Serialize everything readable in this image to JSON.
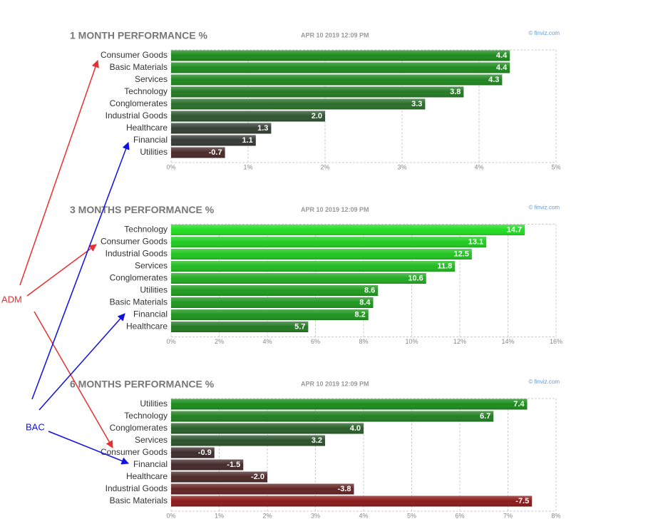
{
  "chart_data": [
    {
      "type": "bar",
      "orientation": "horizontal",
      "title": "1 MONTH PERFORMANCE %",
      "subtitle": "APR 10 2019 12:09 PM",
      "source": "© finviz.com",
      "categories": [
        "Consumer Goods",
        "Basic Materials",
        "Services",
        "Technology",
        "Conglomerates",
        "Industrial Goods",
        "Healthcare",
        "Financial",
        "Utilities"
      ],
      "values": [
        4.4,
        4.4,
        4.3,
        3.8,
        3.3,
        2.0,
        1.3,
        1.1,
        -0.7
      ],
      "value_labels": [
        "4.4",
        "4.4",
        "4.3",
        "3.8",
        "3.3",
        "2.0",
        "1.3",
        "1.1",
        "-0.7"
      ],
      "colors": [
        "#1e8a1e",
        "#1e8a1e",
        "#208620",
        "#247a24",
        "#2a6e2a",
        "#2f5530",
        "#344034",
        "#343a34",
        "#4a2a2a"
      ],
      "xlim": [
        0,
        5
      ],
      "xticks": [
        {
          "value": 0,
          "label": "0%"
        },
        {
          "value": 1,
          "label": "1%"
        },
        {
          "value": 2,
          "label": "2%"
        },
        {
          "value": 3,
          "label": "3%"
        },
        {
          "value": 4,
          "label": "4%"
        },
        {
          "value": 5,
          "label": "5%"
        }
      ],
      "grid": true
    },
    {
      "type": "bar",
      "orientation": "horizontal",
      "title": "3 MONTHS PERFORMANCE %",
      "subtitle": "APR 10 2019 12:09 PM",
      "source": "© finviz.com",
      "categories": [
        "Technology",
        "Consumer Goods",
        "Industrial Goods",
        "Services",
        "Conglomerates",
        "Utilities",
        "Basic Materials",
        "Financial",
        "Healthcare"
      ],
      "values": [
        14.7,
        13.1,
        12.5,
        11.8,
        10.6,
        8.6,
        8.4,
        8.2,
        5.7
      ],
      "value_labels": [
        "14.7",
        "13.1",
        "12.5",
        "11.8",
        "10.6",
        "8.6",
        "8.4",
        "8.2",
        "5.7"
      ],
      "colors": [
        "#22dd22",
        "#20cc20",
        "#20c420",
        "#20bb20",
        "#22aa22",
        "#1f9a1f",
        "#1f971f",
        "#1f951f",
        "#237a23"
      ],
      "xlim": [
        0,
        16
      ],
      "xticks": [
        {
          "value": 0,
          "label": "0%"
        },
        {
          "value": 2,
          "label": "2%"
        },
        {
          "value": 4,
          "label": "4%"
        },
        {
          "value": 6,
          "label": "6%"
        },
        {
          "value": 8,
          "label": "8%"
        },
        {
          "value": 10,
          "label": "10%"
        },
        {
          "value": 12,
          "label": "12%"
        },
        {
          "value": 14,
          "label": "14%"
        },
        {
          "value": 16,
          "label": "16%"
        }
      ],
      "grid": true
    },
    {
      "type": "bar",
      "orientation": "horizontal",
      "title": "6 MONTHS PERFORMANCE %",
      "subtitle": "APR 10 2019 12:09 PM",
      "source": "© finviz.com",
      "categories": [
        "Utilities",
        "Technology",
        "Conglomerates",
        "Services",
        "Consumer Goods",
        "Financial",
        "Healthcare",
        "Industrial Goods",
        "Basic Materials"
      ],
      "values": [
        7.4,
        6.7,
        4.0,
        3.2,
        -0.9,
        -1.5,
        -2.0,
        -3.8,
        -7.5
      ],
      "value_labels": [
        "7.4",
        "6.7",
        "4.0",
        "3.2",
        "-0.9",
        "-1.5",
        "-2.0",
        "-3.8",
        "-7.5"
      ],
      "colors": [
        "#1c8c1c",
        "#217f21",
        "#285f28",
        "#2c532c",
        "#3e2c2c",
        "#452a2a",
        "#4d2a2a",
        "#632323",
        "#8a1a1a"
      ],
      "xlim": [
        0,
        8
      ],
      "xticks": [
        {
          "value": 0,
          "label": "0%"
        },
        {
          "value": 1,
          "label": "1%"
        },
        {
          "value": 2,
          "label": "2%"
        },
        {
          "value": 3,
          "label": "3%"
        },
        {
          "value": 4,
          "label": "4%"
        },
        {
          "value": 5,
          "label": "5%"
        },
        {
          "value": 6,
          "label": "6%"
        },
        {
          "value": 7,
          "label": "7%"
        },
        {
          "value": 8,
          "label": "8%"
        }
      ],
      "grid": true
    }
  ],
  "annotations": [
    "ADM",
    "BAC"
  ]
}
